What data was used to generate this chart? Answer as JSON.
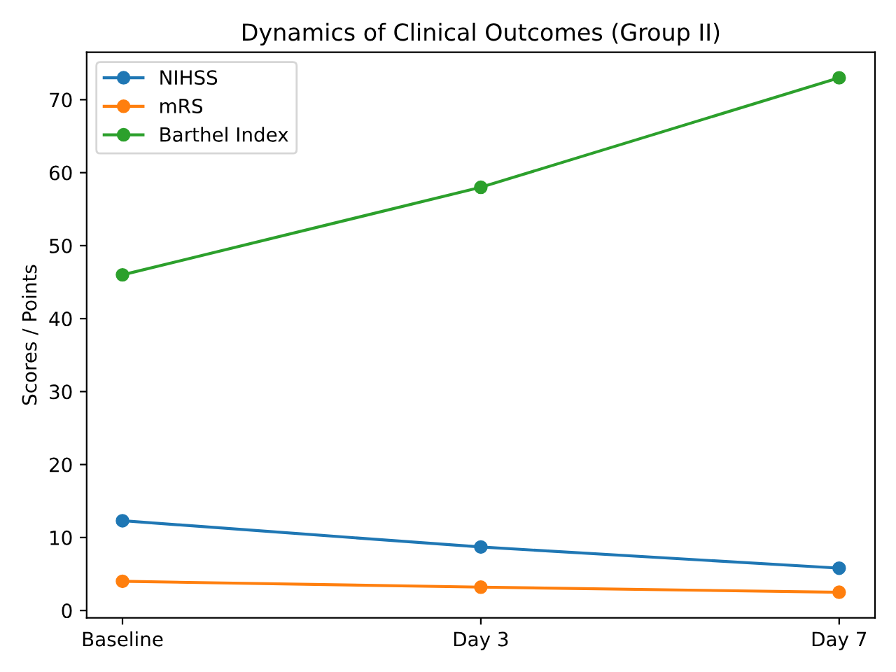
{
  "chart_data": {
    "type": "line",
    "title": "Dynamics of Clinical Outcomes (Group II)",
    "ylabel": "Scores / Points",
    "categories": [
      "Baseline",
      "Day 3",
      "Day 7"
    ],
    "series": [
      {
        "name": "NIHSS",
        "color": "#1f77b4",
        "values": [
          12.3,
          8.7,
          5.8
        ]
      },
      {
        "name": "mRS",
        "color": "#ff7f0e",
        "values": [
          4.0,
          3.2,
          2.5
        ]
      },
      {
        "name": "Barthel Index",
        "color": "#2ca02c",
        "values": [
          46,
          58,
          73
        ]
      }
    ],
    "ylim": [
      -1.0,
      76.5
    ],
    "yticks": [
      0,
      10,
      20,
      30,
      40,
      50,
      60,
      70
    ],
    "marker": "circle",
    "line_style": "solid",
    "legend": "top left",
    "grid": false
  }
}
